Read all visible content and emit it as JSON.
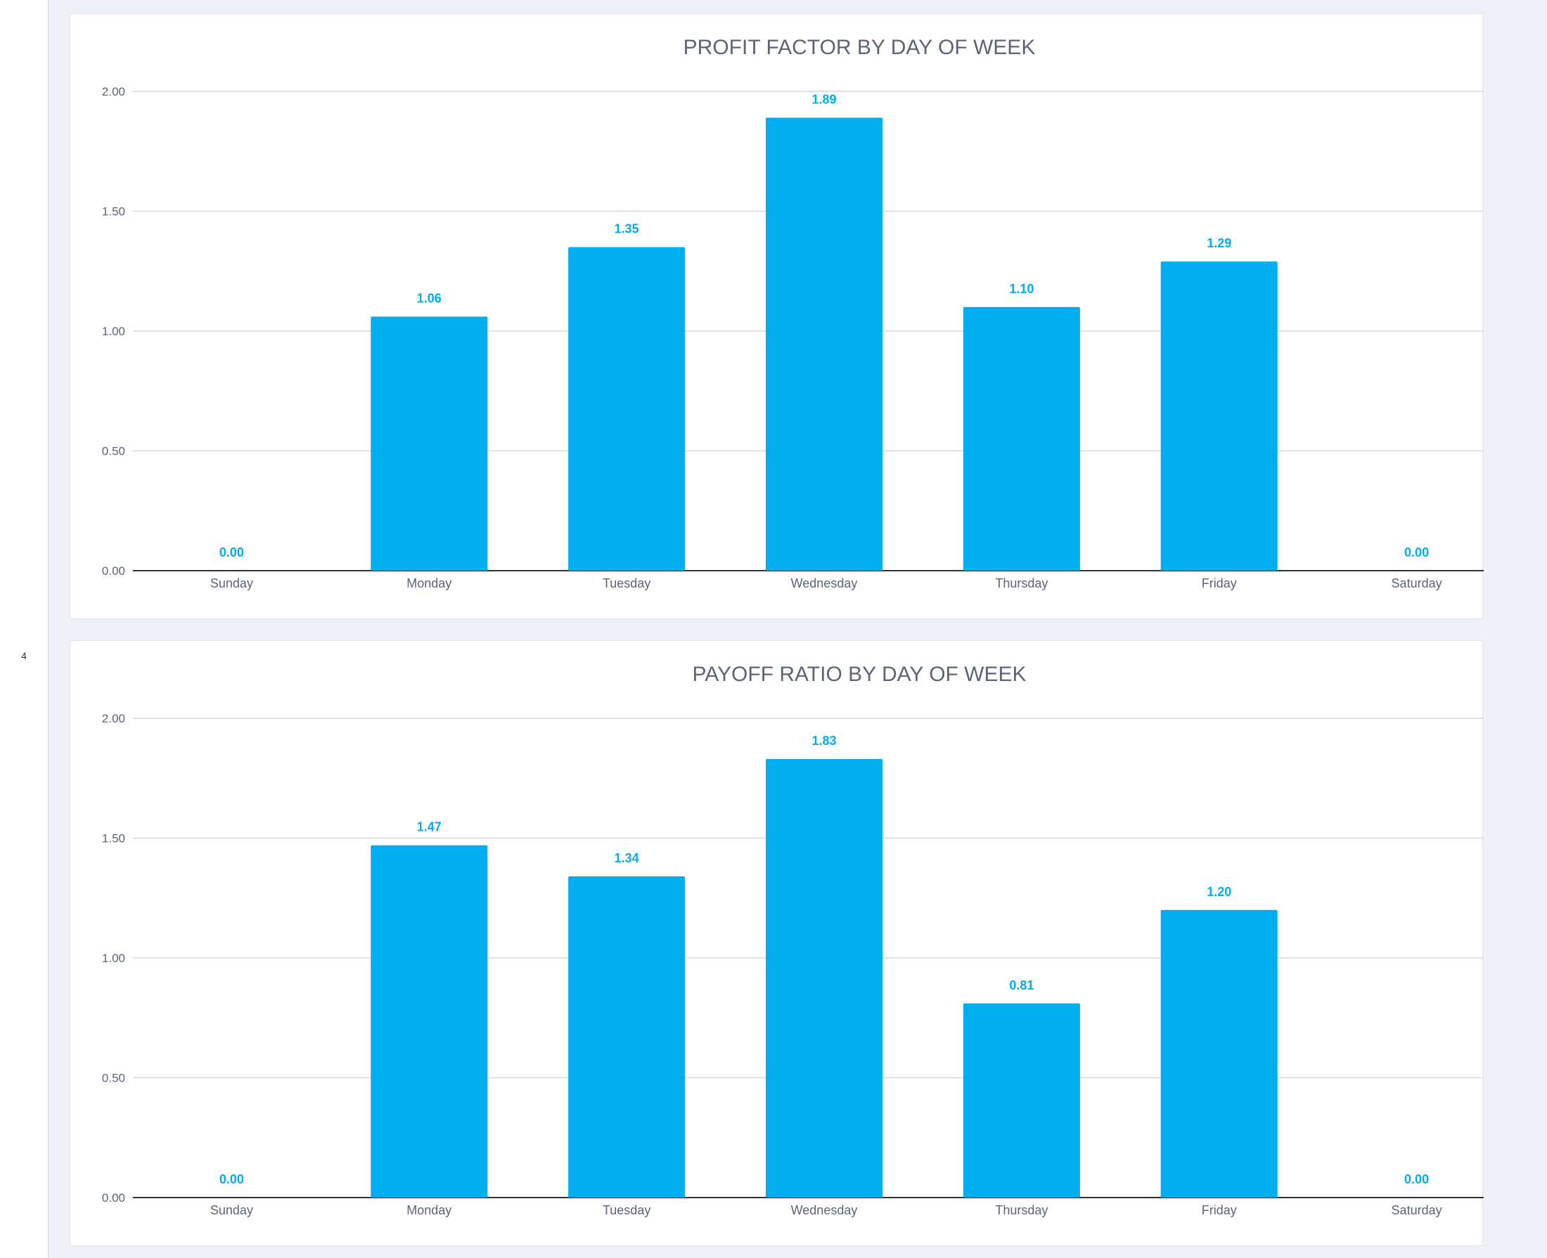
{
  "page": {
    "number": "4"
  },
  "colors": {
    "bar": "#00aeef",
    "background": "#eef1f8",
    "card": "#ffffff"
  },
  "chart_data": [
    {
      "type": "bar",
      "title": "PROFIT FACTOR BY DAY OF WEEK",
      "categories": [
        "Sunday",
        "Monday",
        "Tuesday",
        "Wednesday",
        "Thursday",
        "Friday",
        "Saturday"
      ],
      "values": [
        0.0,
        1.06,
        1.35,
        1.89,
        1.1,
        1.29,
        0.0
      ],
      "data_labels": [
        "0.00",
        "1.06",
        "1.35",
        "1.89",
        "1.10",
        "1.29",
        "0.00"
      ],
      "yticks": [
        "0.00",
        "0.50",
        "1.00",
        "1.50",
        "2.00"
      ],
      "ylim": [
        0,
        2
      ],
      "grid": true,
      "legend": "none",
      "xlabel": "",
      "ylabel": ""
    },
    {
      "type": "bar",
      "title": "PAYOFF RATIO BY DAY OF WEEK",
      "categories": [
        "Sunday",
        "Monday",
        "Tuesday",
        "Wednesday",
        "Thursday",
        "Friday",
        "Saturday"
      ],
      "values": [
        0.0,
        1.47,
        1.34,
        1.83,
        0.81,
        1.2,
        0.0
      ],
      "data_labels": [
        "0.00",
        "1.47",
        "1.34",
        "1.83",
        "0.81",
        "1.20",
        "0.00"
      ],
      "yticks": [
        "0.00",
        "0.50",
        "1.00",
        "1.50",
        "2.00"
      ],
      "ylim": [
        0,
        2
      ],
      "grid": true,
      "legend": "none",
      "xlabel": "",
      "ylabel": ""
    }
  ]
}
